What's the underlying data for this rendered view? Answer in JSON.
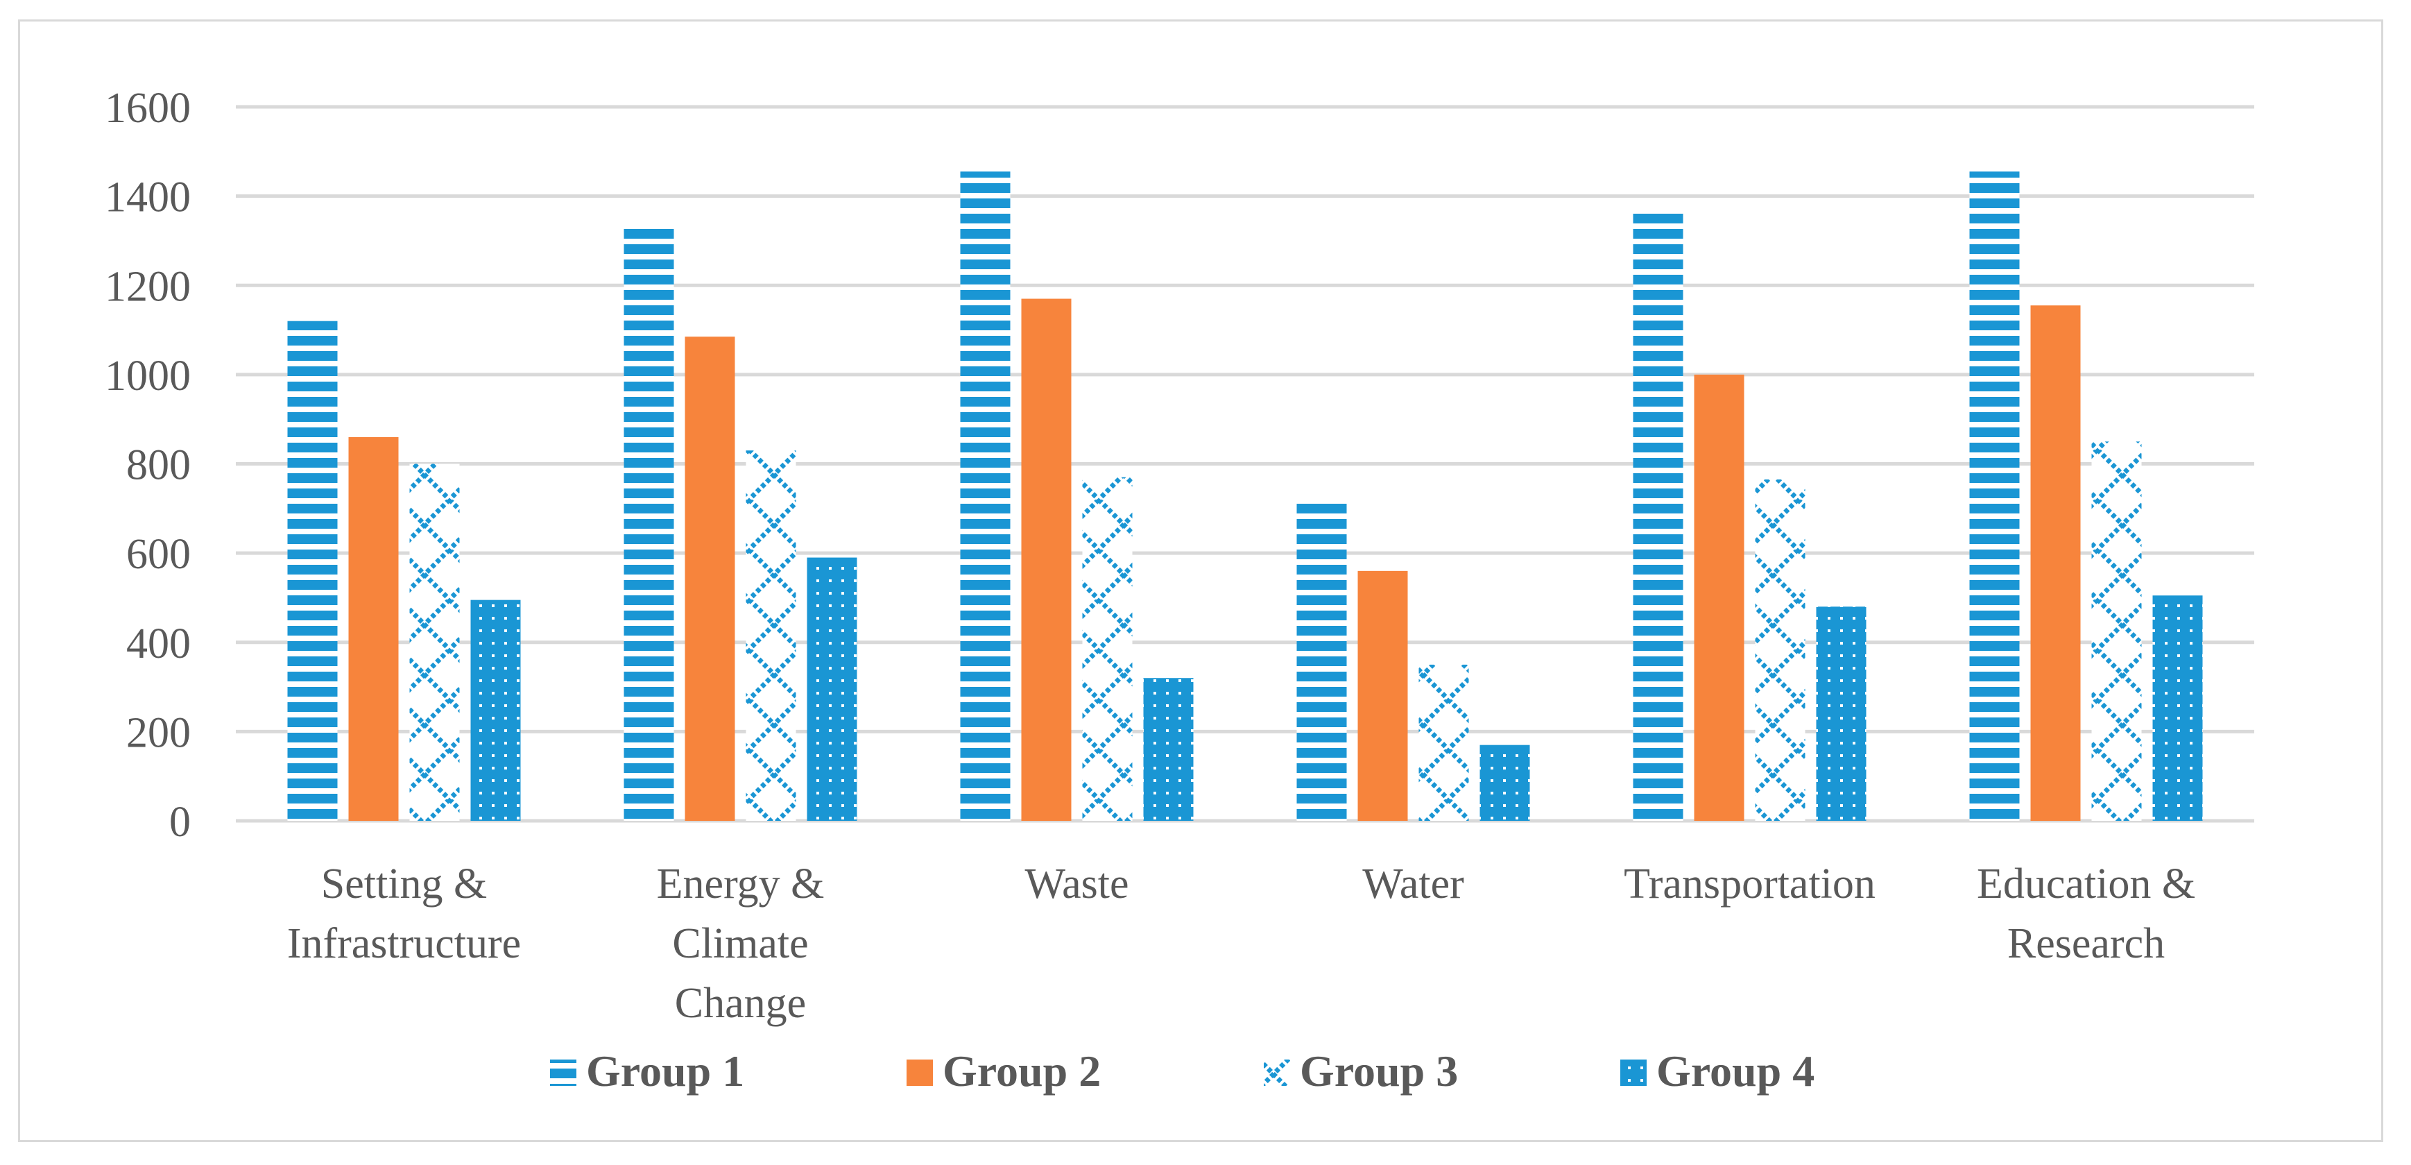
{
  "chart_data": {
    "type": "bar",
    "title": "",
    "xlabel": "",
    "ylabel": "",
    "ylim": [
      0,
      1600
    ],
    "yticks": [
      0,
      200,
      400,
      600,
      800,
      1000,
      1200,
      1400,
      1600
    ],
    "grid": true,
    "legend_position": "bottom",
    "categories": [
      [
        "Setting &",
        "Infrastructure"
      ],
      [
        "Energy &",
        "Climate",
        "Change"
      ],
      [
        "Waste"
      ],
      [
        "Water"
      ],
      [
        "Transportation"
      ],
      [
        "Education &",
        "Research"
      ]
    ],
    "series": [
      {
        "name": "Group 1",
        "color": "#1a96d4",
        "pattern": "horizontal-stripes",
        "values": [
          1120,
          1335,
          1455,
          715,
          1365,
          1455
        ]
      },
      {
        "name": "Group 2",
        "color": "#f7843c",
        "pattern": "solid",
        "values": [
          860,
          1085,
          1170,
          560,
          1000,
          1155
        ]
      },
      {
        "name": "Group 3",
        "color": "#1a96d4",
        "pattern": "zigzag",
        "values": [
          800,
          830,
          770,
          350,
          765,
          850
        ]
      },
      {
        "name": "Group 4",
        "color": "#1a96d4",
        "pattern": "dots",
        "values": [
          495,
          590,
          320,
          170,
          480,
          505
        ]
      }
    ]
  }
}
